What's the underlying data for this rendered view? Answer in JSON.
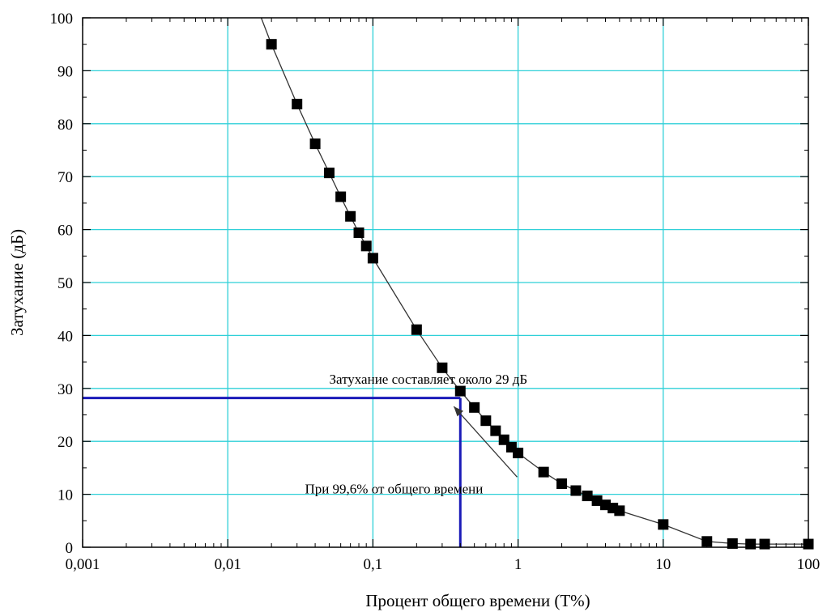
{
  "chart_data": {
    "type": "scatter",
    "xlabel": "Процент общего времени (T%)",
    "ylabel": "Затухание (дБ)",
    "x_scale": "log",
    "xlim": [
      0.001,
      100
    ],
    "ylim": [
      0,
      100
    ],
    "grid": true,
    "x_ticks": [
      "0,001",
      "0,01",
      "0,1",
      "1",
      "10",
      "100"
    ],
    "y_ticks": [
      "0",
      "10",
      "20",
      "30",
      "40",
      "50",
      "60",
      "70",
      "80",
      "90",
      "100"
    ],
    "series": [
      {
        "points": [
          [
            0.02,
            95
          ],
          [
            0.03,
            83.7
          ],
          [
            0.04,
            76.2
          ],
          [
            0.05,
            70.7
          ],
          [
            0.06,
            66.2
          ],
          [
            0.07,
            62.5
          ],
          [
            0.08,
            59.4
          ],
          [
            0.09,
            56.9
          ],
          [
            0.1,
            54.6
          ],
          [
            0.2,
            41.1
          ],
          [
            0.3,
            33.9
          ],
          [
            0.4,
            29.5
          ],
          [
            0.5,
            26.4
          ],
          [
            0.6,
            23.9
          ],
          [
            0.7,
            22.0
          ],
          [
            0.8,
            20.3
          ],
          [
            0.9,
            18.9
          ],
          [
            1,
            17.8
          ],
          [
            1.5,
            14.2
          ],
          [
            2,
            12.0
          ],
          [
            2.5,
            10.7
          ],
          [
            3,
            9.7
          ],
          [
            3.5,
            8.8
          ],
          [
            4,
            8.0
          ],
          [
            4.5,
            7.4
          ],
          [
            5,
            6.9
          ],
          [
            10,
            4.3
          ],
          [
            20,
            1.1
          ],
          [
            30,
            0.7
          ],
          [
            40,
            0.6
          ],
          [
            50,
            0.6
          ],
          [
            100,
            0.6
          ]
        ],
        "color": "#000000"
      }
    ],
    "curve_start": [
      0.017,
      100
    ],
    "marker_line": {
      "x": 0.4,
      "y": 28.2,
      "color": "#1a1ab8"
    },
    "annotations": [
      {
        "text": "Затухание составляет около 29 дБ",
        "x": 0.05,
        "y": 30.9
      },
      {
        "text": "При 99,6% от общего времени",
        "x": 0.034,
        "y": 10.2,
        "arrow_to": [
          0.4,
          27.5
        ]
      }
    ],
    "grid_color": "#2fd0d8"
  }
}
